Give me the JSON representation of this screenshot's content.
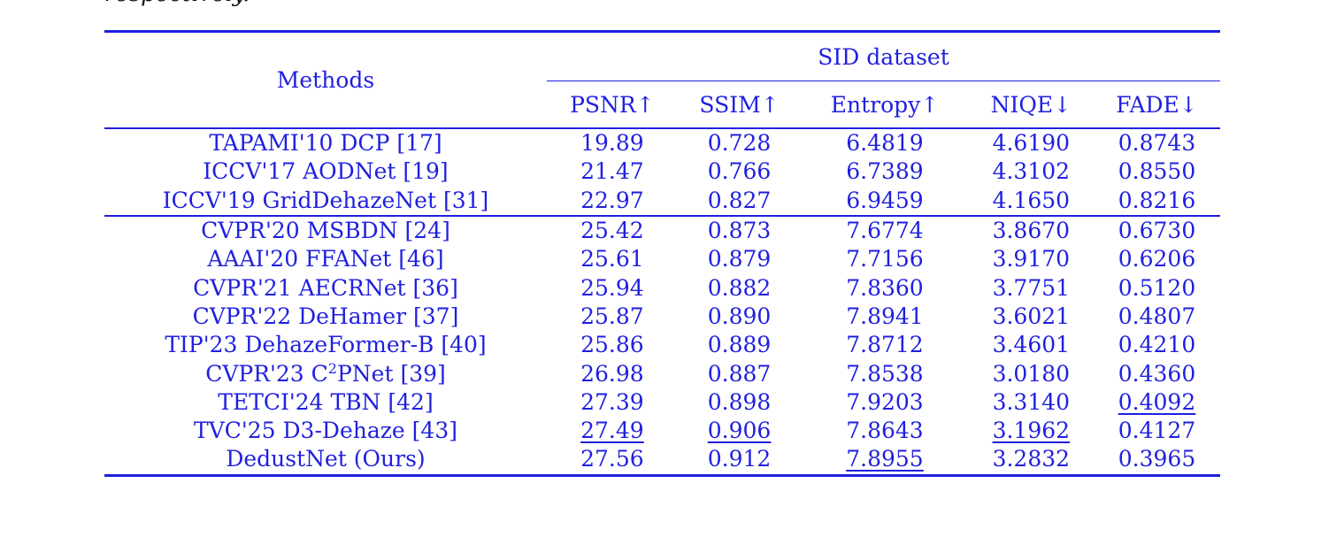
{
  "caption_fragment": "respectively.",
  "table": {
    "methods_header": "Methods",
    "dataset_header": "SID dataset",
    "metric_headers": [
      "PSNR↑",
      "SSIM↑",
      "Entropy↑",
      "NIQE↓",
      "FADE↓"
    ],
    "group1": [
      {
        "method": "TAPAMI'10 DCP [17]",
        "psnr": "19.89",
        "ssim": "0.728",
        "entropy": "6.4819",
        "niqe": "4.6190",
        "fade": "0.8743"
      },
      {
        "method": "ICCV'17 AODNet [19]",
        "psnr": "21.47",
        "ssim": "0.766",
        "entropy": "6.7389",
        "niqe": "4.3102",
        "fade": "0.8550"
      },
      {
        "method": "ICCV'19 GridDehazeNet [31]",
        "psnr": "22.97",
        "ssim": "0.827",
        "entropy": "6.9459",
        "niqe": "4.1650",
        "fade": "0.8216"
      }
    ],
    "group2": [
      {
        "method": "CVPR'20 MSBDN [24]",
        "psnr": "25.42",
        "ssim": "0.873",
        "entropy": "7.6774",
        "niqe": "3.8670",
        "fade": "0.6730"
      },
      {
        "method": "AAAI'20 FFANet [46]",
        "psnr": "25.61",
        "ssim": "0.879",
        "entropy": "7.7156",
        "niqe": "3.9170",
        "fade": "0.6206"
      },
      {
        "method": "CVPR'21 AECRNet [36]",
        "psnr": "25.94",
        "ssim": "0.882",
        "entropy": "7.8360",
        "niqe": "3.7751",
        "fade": "0.5120"
      },
      {
        "method": "CVPR'22 DeHamer [37]",
        "psnr": "25.87",
        "ssim": "0.890",
        "entropy": "7.8941",
        "niqe": "3.6021",
        "fade": "0.4807"
      },
      {
        "method": "TIP'23 DehazeFormer-B [40]",
        "psnr": "25.86",
        "ssim": "0.889",
        "entropy": "7.8712",
        "niqe": "3.4601",
        "fade": "0.4210"
      },
      {
        "method_prefix": "CVPR'23 C",
        "method_sup": "2",
        "method_suffix": "PNet [39]",
        "psnr": "26.98",
        "ssim": "0.887",
        "entropy": "7.8538",
        "niqe": "3.0180",
        "fade": "0.4360"
      },
      {
        "method": "TETCI'24 TBN [42]",
        "psnr": "27.39",
        "ssim": "0.898",
        "entropy": "7.9203",
        "niqe": "3.3140",
        "fade": "0.4092"
      },
      {
        "method": "TVC'25 D3-Dehaze [43]",
        "psnr": "27.49",
        "ssim": "0.906",
        "entropy": "7.8643",
        "niqe": "3.1962",
        "fade": "0.4127"
      },
      {
        "method": "DedustNet (Ours)",
        "psnr": "27.56",
        "ssim": "0.912",
        "entropy": "7.8955",
        "niqe": "3.2832",
        "fade": "0.3965"
      }
    ]
  }
}
